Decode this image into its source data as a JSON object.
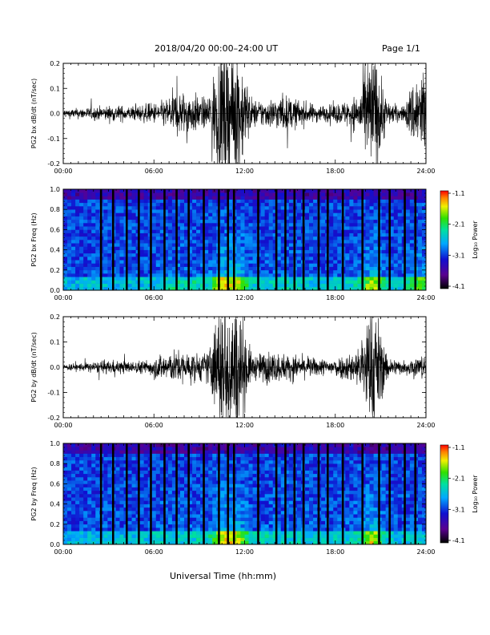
{
  "header": {
    "title": "2018/04/20   00:00–24:00 UT",
    "page": "Page 1/1"
  },
  "footer": {
    "xlabel": "Universal Time (hh:mm)"
  },
  "colors": {
    "trace": "#000000",
    "spectrogram_background": "#14148c"
  },
  "chart_data": [
    {
      "type": "line",
      "ylabel": "PG2 bx dB/dt (nT/sec)",
      "x_ticks": [
        "00:00",
        "06:00",
        "12:00",
        "18:00",
        "24:00"
      ],
      "y_ticks": [
        "0.2",
        "0.1",
        "0.0",
        "-0.1",
        "-0.2"
      ],
      "xlim": [
        0,
        24
      ],
      "ylim": [
        -0.2,
        0.2
      ],
      "x_unit": "hours UT",
      "series": [
        {
          "x": [
            0.5,
            1.5,
            2.5,
            3.5,
            4.5,
            5.5,
            6.5,
            7.5,
            8.5,
            9.5,
            10.5,
            11.5,
            12.5,
            13.5,
            14.5,
            15.5,
            16.5,
            17.5,
            18.5,
            19.5,
            20.5,
            21.5,
            22.5,
            23.5
          ],
          "amplitude": [
            0.02,
            0.025,
            0.03,
            0.035,
            0.03,
            0.04,
            0.05,
            0.1,
            0.09,
            0.06,
            0.3,
            0.3,
            0.06,
            0.06,
            0.08,
            0.06,
            0.04,
            0.035,
            0.05,
            0.08,
            0.3,
            0.05,
            0.03,
            0.2
          ]
        }
      ]
    },
    {
      "type": "heatmap",
      "ylabel": "PG2 bx Freq (Hz)",
      "x_ticks": [
        "00:00",
        "06:00",
        "12:00",
        "18:00",
        "24:00"
      ],
      "y_ticks": [
        "1.0",
        "0.8",
        "0.6",
        "0.4",
        "0.2",
        "0.0"
      ],
      "xlim": [
        0,
        24
      ],
      "ylim": [
        0,
        1.0
      ],
      "colorbar": {
        "label": "Log₁₀ Power",
        "ticks": [
          "-1.1",
          "-2.1",
          "-3.1",
          "-4.1"
        ],
        "range": [
          -4.1,
          -1.1
        ]
      },
      "gaps_hours": [
        2.5,
        3.3,
        4.2,
        5.0,
        5.8,
        6.7,
        7.5,
        8.3,
        9.3,
        10.3,
        10.9,
        11.3,
        12.9,
        14.1,
        14.7,
        15.3,
        15.9,
        16.9,
        17.5,
        18.5,
        19.8,
        20.9,
        21.6,
        22.6,
        23.3
      ]
    },
    {
      "type": "line",
      "ylabel": "PG2 by dB/dt (nT/sec)",
      "x_ticks": [
        "00:00",
        "06:00",
        "12:00",
        "18:00",
        "24:00"
      ],
      "y_ticks": [
        "0.2",
        "0.1",
        "0.0",
        "-0.1",
        "-0.2"
      ],
      "xlim": [
        0,
        24
      ],
      "ylim": [
        -0.2,
        0.2
      ],
      "x_unit": "hours UT",
      "series": [
        {
          "x": [
            0.5,
            1.5,
            2.5,
            3.5,
            4.5,
            5.5,
            6.5,
            7.5,
            8.5,
            9.5,
            10.5,
            11.5,
            12.5,
            13.5,
            14.5,
            15.5,
            16.5,
            17.5,
            18.5,
            19.5,
            20.5,
            21.5,
            22.5,
            23.5
          ],
          "amplitude": [
            0.015,
            0.02,
            0.025,
            0.03,
            0.025,
            0.03,
            0.06,
            0.07,
            0.06,
            0.06,
            0.3,
            0.3,
            0.05,
            0.07,
            0.06,
            0.05,
            0.04,
            0.035,
            0.05,
            0.08,
            0.3,
            0.04,
            0.03,
            0.05
          ]
        }
      ]
    },
    {
      "type": "heatmap",
      "ylabel": "PG2 by Freq (Hz)",
      "x_ticks": [
        "00:00",
        "06:00",
        "12:00",
        "18:00",
        "24:00"
      ],
      "y_ticks": [
        "1.0",
        "0.8",
        "0.6",
        "0.4",
        "0.2",
        "0.0"
      ],
      "xlim": [
        0,
        24
      ],
      "ylim": [
        0,
        1.0
      ],
      "colorbar": {
        "label": "Log₁₀ Power",
        "ticks": [
          "-1.1",
          "-2.1",
          "-3.1",
          "-4.1"
        ],
        "range": [
          -4.1,
          -1.1
        ]
      },
      "gaps_hours": [
        2.5,
        3.3,
        4.2,
        5.0,
        5.8,
        6.7,
        7.5,
        8.3,
        9.3,
        10.3,
        10.9,
        11.3,
        12.9,
        14.1,
        14.7,
        15.3,
        15.9,
        16.9,
        17.5,
        18.5,
        19.8,
        20.9,
        21.6,
        22.6,
        23.3
      ]
    }
  ]
}
